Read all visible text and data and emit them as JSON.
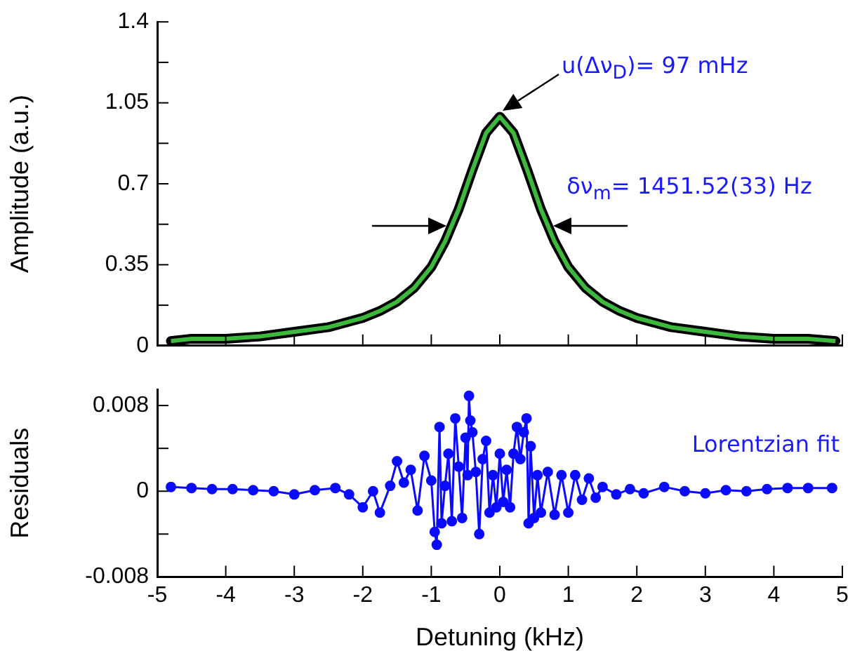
{
  "chart_data": [
    {
      "type": "line",
      "ylabel": "Amplitude (a.u.)",
      "xlim": [
        -5,
        5
      ],
      "xticks": [
        -5,
        -4,
        -3,
        -2,
        -1,
        0,
        1,
        2,
        3,
        4,
        5
      ],
      "ylim": [
        0,
        1.4
      ],
      "yticks": [
        0,
        {
          "value": 0.175,
          "label": null
        },
        0.35,
        {
          "value": 0.525,
          "label": null
        },
        0.7,
        {
          "value": 0.875,
          "label": null
        },
        1.05,
        {
          "value": 1.225,
          "label": null
        },
        1.4
      ],
      "tick_labels": "y",
      "marker": "none",
      "series": [
        {
          "color": "#3cb83c",
          "x": [
            -4.8,
            -4.5,
            -4,
            -3.5,
            -3,
            -2.5,
            -2,
            -1.75,
            -1.5,
            -1.25,
            -1,
            -0.8,
            -0.6,
            -0.4,
            -0.2,
            0,
            0.2,
            0.4,
            0.6,
            0.8,
            1,
            1.25,
            1.5,
            1.75,
            2,
            2.5,
            3,
            3.5,
            4,
            4.5,
            4.9
          ],
          "values": [
            0.02,
            0.03,
            0.03,
            0.04,
            0.06,
            0.08,
            0.12,
            0.15,
            0.19,
            0.25,
            0.34,
            0.45,
            0.59,
            0.76,
            0.92,
            0.99,
            0.92,
            0.76,
            0.59,
            0.45,
            0.34,
            0.25,
            0.19,
            0.15,
            0.12,
            0.08,
            0.06,
            0.04,
            0.03,
            0.03,
            0.02
          ]
        }
      ],
      "annotations": [
        "u(Δν$_{D}$)= 97 mHz",
        {
          "text": "δν$_{m}$= 1451.52(33) Hz",
          "x": 0.73,
          "y": 0.52
        }
      ]
    },
    {
      "type": "line",
      "xlabel": "Detuning (kHz)",
      "ylabel": "Residuals",
      "xlim": [
        -5,
        5
      ],
      "xticks": [
        -5,
        -4,
        -3,
        -2,
        -1,
        0,
        1,
        2,
        3,
        4,
        5
      ],
      "ylim": [
        -0.008,
        0.0095
      ],
      "yticks": [
        -0.008,
        {
          "value": -0.004,
          "label": null
        },
        0,
        {
          "value": 0.004,
          "label": null
        },
        0.008
      ],
      "marker": "circle",
      "series": [
        {
          "color": "#0a0aff",
          "x": [
            -4.8,
            -4.5,
            -4.2,
            -3.9,
            -3.6,
            -3.3,
            -3,
            -2.7,
            -2.4,
            -2.2,
            -2,
            -1.85,
            -1.75,
            -1.6,
            -1.5,
            -1.4,
            -1.3,
            -1.2,
            -1.1,
            -1,
            -0.95,
            -0.92,
            -0.88,
            -0.85,
            -0.8,
            -0.75,
            -0.7,
            -0.65,
            -0.6,
            -0.55,
            -0.5,
            -0.47,
            -0.45,
            -0.43,
            -0.4,
            -0.35,
            -0.3,
            -0.25,
            -0.2,
            -0.15,
            -0.1,
            -0.05,
            0,
            0.05,
            0.1,
            0.15,
            0.2,
            0.25,
            0.3,
            0.35,
            0.39,
            0.42,
            0.45,
            0.5,
            0.55,
            0.6,
            0.7,
            0.8,
            0.9,
            1,
            1.1,
            1.2,
            1.3,
            1.4,
            1.5,
            1.7,
            1.9,
            2.1,
            2.4,
            2.7,
            3,
            3.3,
            3.6,
            3.9,
            4.2,
            4.5,
            4.85
          ],
          "values": [
            0.0004,
            0.0003,
            0.0002,
            0.0002,
            0.0001,
            0,
            -0.0003,
            0.0001,
            0.0003,
            -0.0003,
            -0.0015,
            0,
            -0.002,
            0.0005,
            0.0028,
            0.0008,
            0.002,
            -0.0018,
            0.0033,
            0.001,
            -0.0038,
            -0.005,
            0.006,
            -0.003,
            0.0005,
            0.0035,
            -0.0028,
            0.0068,
            0.0023,
            -0.0025,
            0.005,
            0.0015,
            0.0089,
            0.0066,
            0.0055,
            0.0018,
            -0.004,
            0.003,
            0.0047,
            -0.002,
            0.0015,
            -0.0015,
            0.0035,
            -0.001,
            0.002,
            -0.0015,
            0.0035,
            0.006,
            0.003,
            0.0055,
            0.0068,
            -0.003,
            0.0042,
            -0.0025,
            0.0015,
            -0.002,
            0.0018,
            -0.0022,
            0.0015,
            -0.002,
            0.0015,
            -0.0008,
            0.0012,
            -0.0006,
            0.0004,
            -0.0003,
            0.0002,
            -0.0002,
            0.0004,
            0,
            -0.0002,
            0.0001,
            0,
            0.0002,
            0.0003,
            0.0003,
            0.0003
          ]
        }
      ],
      "annotations": [
        "Lorentzian fit"
      ]
    }
  ]
}
